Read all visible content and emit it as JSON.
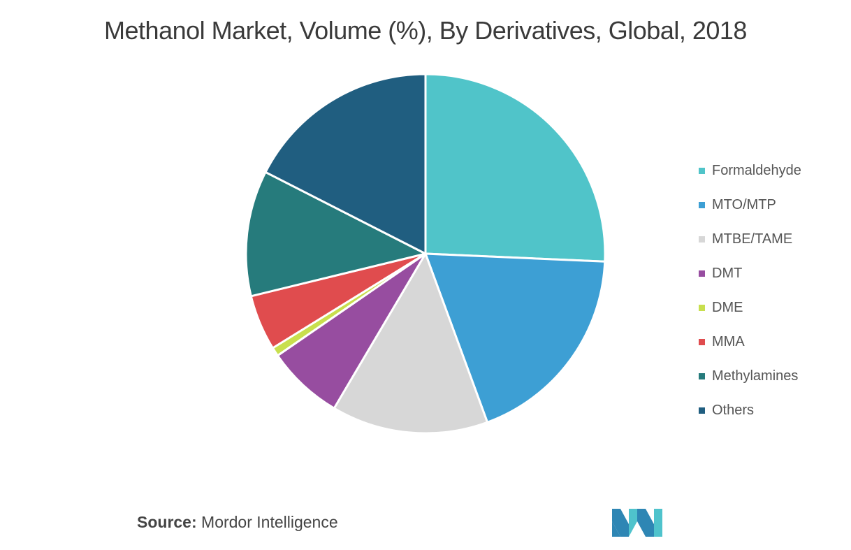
{
  "title": "Methanol Market, Volume (%), By Derivatives, Global, 2018",
  "source": {
    "key": "Source:",
    "value": " Mordor Intelligence"
  },
  "logo": {
    "name": "mordor-intelligence-logo",
    "colors": [
      "#2E86B4",
      "#4FC3CC"
    ]
  },
  "chart_data": {
    "type": "pie",
    "title": "Methanol Market, Volume (%), By Derivatives, Global, 2018",
    "start_angle_deg": 0,
    "direction": "clockwise",
    "legend_position": "right",
    "slices": [
      {
        "label": "Formaldehyde",
        "value": 25.7,
        "color": "#50C4C9"
      },
      {
        "label": "MTO/MTP",
        "value": 18.7,
        "color": "#3D9FD4"
      },
      {
        "label": "MTBE/TAME",
        "value": 14.1,
        "color": "#D7D7D7"
      },
      {
        "label": "DMT",
        "value": 6.9,
        "color": "#974DA0"
      },
      {
        "label": "DME",
        "value": 0.8,
        "color": "#C8DF4E"
      },
      {
        "label": "MMA",
        "value": 5.0,
        "color": "#E04C4E"
      },
      {
        "label": "Methylamines",
        "value": 11.3,
        "color": "#267B7C"
      },
      {
        "label": "Others",
        "value": 17.5,
        "color": "#205E80"
      }
    ]
  }
}
